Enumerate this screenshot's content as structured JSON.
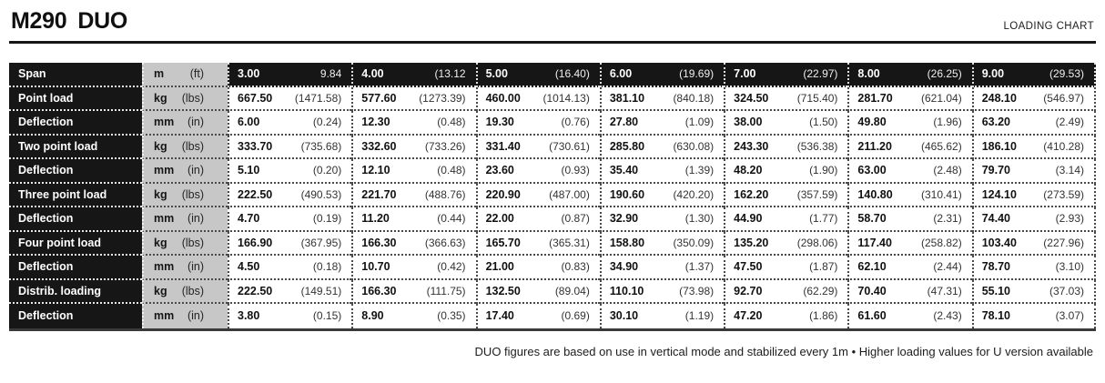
{
  "header": {
    "title_model": "M290",
    "title_variant": "DUO",
    "chart_label": "LOADING CHART"
  },
  "colors": {
    "black": "#161616",
    "units_gray": "#c7c7c7",
    "white": "#ffffff"
  },
  "table": {
    "rows": [
      {
        "header": true,
        "label": "Span",
        "unit_metric": "m",
        "unit_imperial": "(ft)",
        "cells": [
          [
            "3.00",
            "9.84"
          ],
          [
            "4.00",
            "(13.12"
          ],
          [
            "5.00",
            "(16.40)"
          ],
          [
            "6.00",
            "(19.69)"
          ],
          [
            "7.00",
            "(22.97)"
          ],
          [
            "8.00",
            "(26.25)"
          ],
          [
            "9.00",
            "(29.53)"
          ]
        ]
      },
      {
        "label": "Point load",
        "unit_metric": "kg",
        "unit_imperial": "(lbs)",
        "cells": [
          [
            "667.50",
            "(1471.58)"
          ],
          [
            "577.60",
            "(1273.39)"
          ],
          [
            "460.00",
            "(1014.13)"
          ],
          [
            "381.10",
            "(840.18)"
          ],
          [
            "324.50",
            "(715.40)"
          ],
          [
            "281.70",
            "(621.04)"
          ],
          [
            "248.10",
            "(546.97)"
          ]
        ]
      },
      {
        "label": "Deflection",
        "unit_metric": "mm",
        "unit_imperial": "(in)",
        "cells": [
          [
            "6.00",
            "(0.24)"
          ],
          [
            "12.30",
            "(0.48)"
          ],
          [
            "19.30",
            "(0.76)"
          ],
          [
            "27.80",
            "(1.09)"
          ],
          [
            "38.00",
            "(1.50)"
          ],
          [
            "49.80",
            "(1.96)"
          ],
          [
            "63.20",
            "(2.49)"
          ]
        ]
      },
      {
        "label": "Two point load",
        "unit_metric": "kg",
        "unit_imperial": "(lbs)",
        "cells": [
          [
            "333.70",
            "(735.68)"
          ],
          [
            "332.60",
            "(733.26)"
          ],
          [
            "331.40",
            "(730.61)"
          ],
          [
            "285.80",
            "(630.08)"
          ],
          [
            "243.30",
            "(536.38)"
          ],
          [
            "211.20",
            "(465.62)"
          ],
          [
            "186.10",
            "(410.28)"
          ]
        ]
      },
      {
        "label": "Deflection",
        "unit_metric": "mm",
        "unit_imperial": "(in)",
        "cells": [
          [
            "5.10",
            "(0.20)"
          ],
          [
            "12.10",
            "(0.48)"
          ],
          [
            "23.60",
            "(0.93)"
          ],
          [
            "35.40",
            "(1.39)"
          ],
          [
            "48.20",
            "(1.90)"
          ],
          [
            "63.00",
            "(2.48)"
          ],
          [
            "79.70",
            "(3.14)"
          ]
        ]
      },
      {
        "label": "Three point load",
        "unit_metric": "kg",
        "unit_imperial": "(lbs)",
        "cells": [
          [
            "222.50",
            "(490.53)"
          ],
          [
            "221.70",
            "(488.76)"
          ],
          [
            "220.90",
            "(487.00)"
          ],
          [
            "190.60",
            "(420.20)"
          ],
          [
            "162.20",
            "(357.59)"
          ],
          [
            "140.80",
            "(310.41)"
          ],
          [
            "124.10",
            "(273.59)"
          ]
        ]
      },
      {
        "label": "Deflection",
        "unit_metric": "mm",
        "unit_imperial": "(in)",
        "cells": [
          [
            "4.70",
            "(0.19)"
          ],
          [
            "11.20",
            "(0.44)"
          ],
          [
            "22.00",
            "(0.87)"
          ],
          [
            "32.90",
            "(1.30)"
          ],
          [
            "44.90",
            "(1.77)"
          ],
          [
            "58.70",
            "(2.31)"
          ],
          [
            "74.40",
            "(2.93)"
          ]
        ]
      },
      {
        "label": "Four point load",
        "unit_metric": "kg",
        "unit_imperial": "(lbs)",
        "cells": [
          [
            "166.90",
            "(367.95)"
          ],
          [
            "166.30",
            "(366.63)"
          ],
          [
            "165.70",
            "(365.31)"
          ],
          [
            "158.80",
            "(350.09)"
          ],
          [
            "135.20",
            "(298.06)"
          ],
          [
            "117.40",
            "(258.82)"
          ],
          [
            "103.40",
            "(227.96)"
          ]
        ]
      },
      {
        "label": "Deflection",
        "unit_metric": "mm",
        "unit_imperial": "(in)",
        "cells": [
          [
            "4.50",
            "(0.18)"
          ],
          [
            "10.70",
            "(0.42)"
          ],
          [
            "21.00",
            "(0.83)"
          ],
          [
            "34.90",
            "(1.37)"
          ],
          [
            "47.50",
            "(1.87)"
          ],
          [
            "62.10",
            "(2.44)"
          ],
          [
            "78.70",
            "(3.10)"
          ]
        ]
      },
      {
        "label": "Distrib. loading",
        "unit_metric": "kg",
        "unit_imperial": "(lbs)",
        "cells": [
          [
            "222.50",
            "(149.51)"
          ],
          [
            "166.30",
            "(111.75)"
          ],
          [
            "132.50",
            "(89.04)"
          ],
          [
            "110.10",
            "(73.98)"
          ],
          [
            "92.70",
            "(62.29)"
          ],
          [
            "70.40",
            "(47.31)"
          ],
          [
            "55.10",
            "(37.03)"
          ]
        ]
      },
      {
        "label": "Deflection",
        "unit_metric": "mm",
        "unit_imperial": "(in)",
        "cells": [
          [
            "3.80",
            "(0.15)"
          ],
          [
            "8.90",
            "(0.35)"
          ],
          [
            "17.40",
            "(0.69)"
          ],
          [
            "30.10",
            "(1.19)"
          ],
          [
            "47.20",
            "(1.86)"
          ],
          [
            "61.60",
            "(2.43)"
          ],
          [
            "78.10",
            "(3.07)"
          ]
        ]
      }
    ]
  },
  "footer": {
    "note": "DUO figures are based on use in vertical mode and stabilized every 1m • Higher loading values for U version available"
  }
}
